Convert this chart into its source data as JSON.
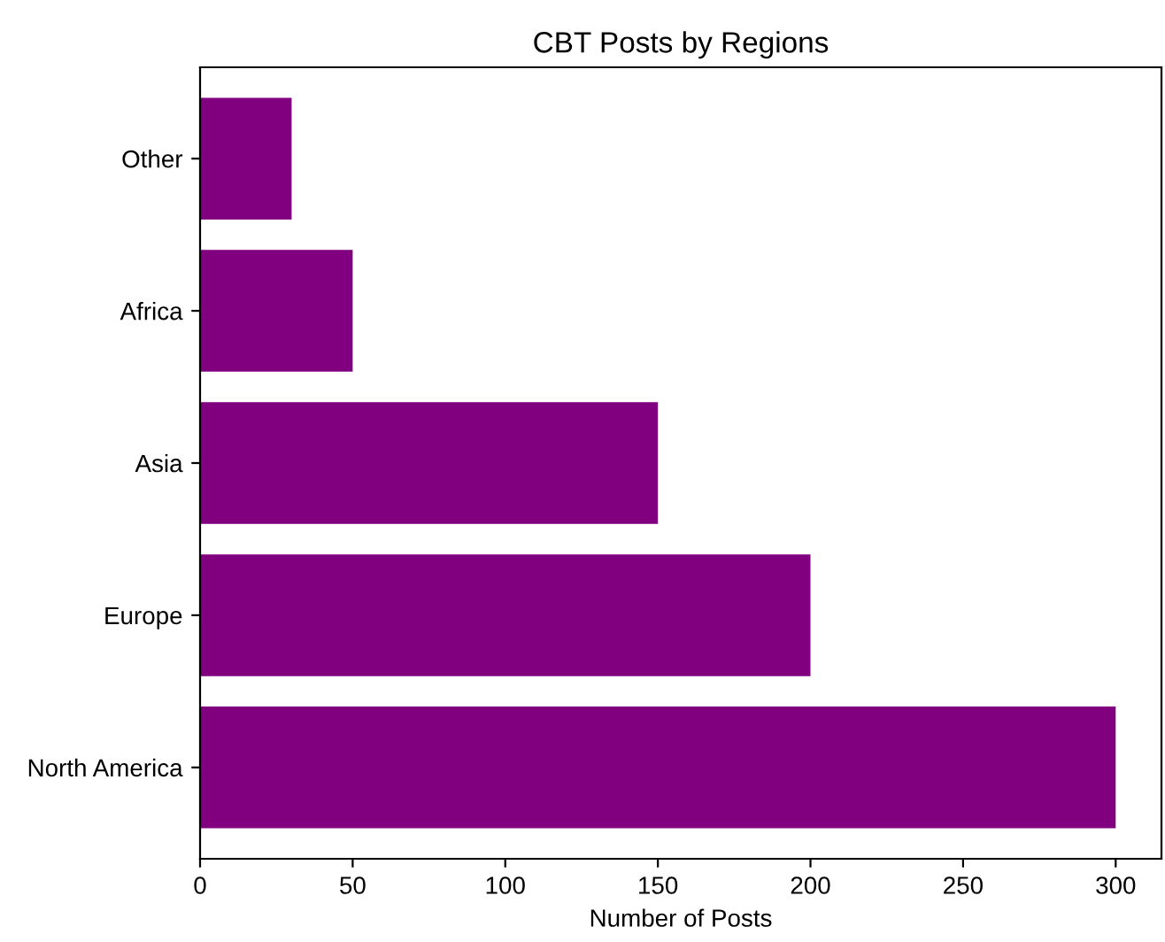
{
  "chart_data": {
    "type": "bar",
    "orientation": "horizontal",
    "title": "CBT Posts by Regions",
    "xlabel": "Number of Posts",
    "categories": [
      "Other",
      "Africa",
      "Asia",
      "Europe",
      "North America"
    ],
    "values": [
      30,
      50,
      150,
      200,
      300
    ],
    "color": "#800080",
    "xlim": [
      0,
      315
    ],
    "xticks": [
      0,
      50,
      100,
      150,
      200,
      250,
      300
    ],
    "grid": false
  }
}
